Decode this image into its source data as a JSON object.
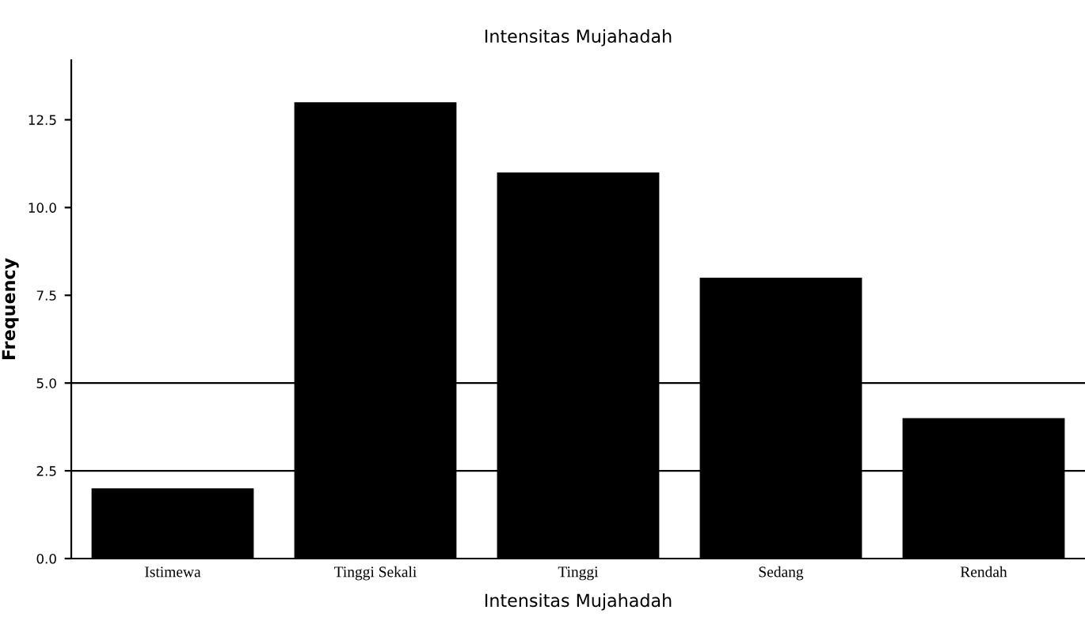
{
  "chart_data": {
    "type": "bar",
    "title": "Intensitas Mujahadah",
    "xlabel": "Intensitas Mujahadah",
    "ylabel": "Frequency",
    "categories": [
      "Istimewa",
      "Tinggi Sekali",
      "Tinggi",
      "Sedang",
      "Rendah"
    ],
    "values": [
      2,
      13,
      11,
      8,
      4
    ],
    "color": "#000000",
    "ylim": [
      0,
      14.2
    ],
    "yticks": [
      {
        "value": 0,
        "label": "0.0"
      },
      {
        "value": 2.5,
        "label": "2.5"
      },
      {
        "value": 5,
        "label": "5.0"
      },
      {
        "value": 7.5,
        "label": "7.5"
      },
      {
        "value": 10,
        "label": "10.0"
      },
      {
        "value": 12.5,
        "label": "12.5"
      }
    ],
    "ref_lines": [
      {
        "axis": "y",
        "value": 2.5,
        "color": "#000000"
      },
      {
        "axis": "y",
        "value": 5,
        "color": "#000000"
      }
    ],
    "grid": false
  }
}
